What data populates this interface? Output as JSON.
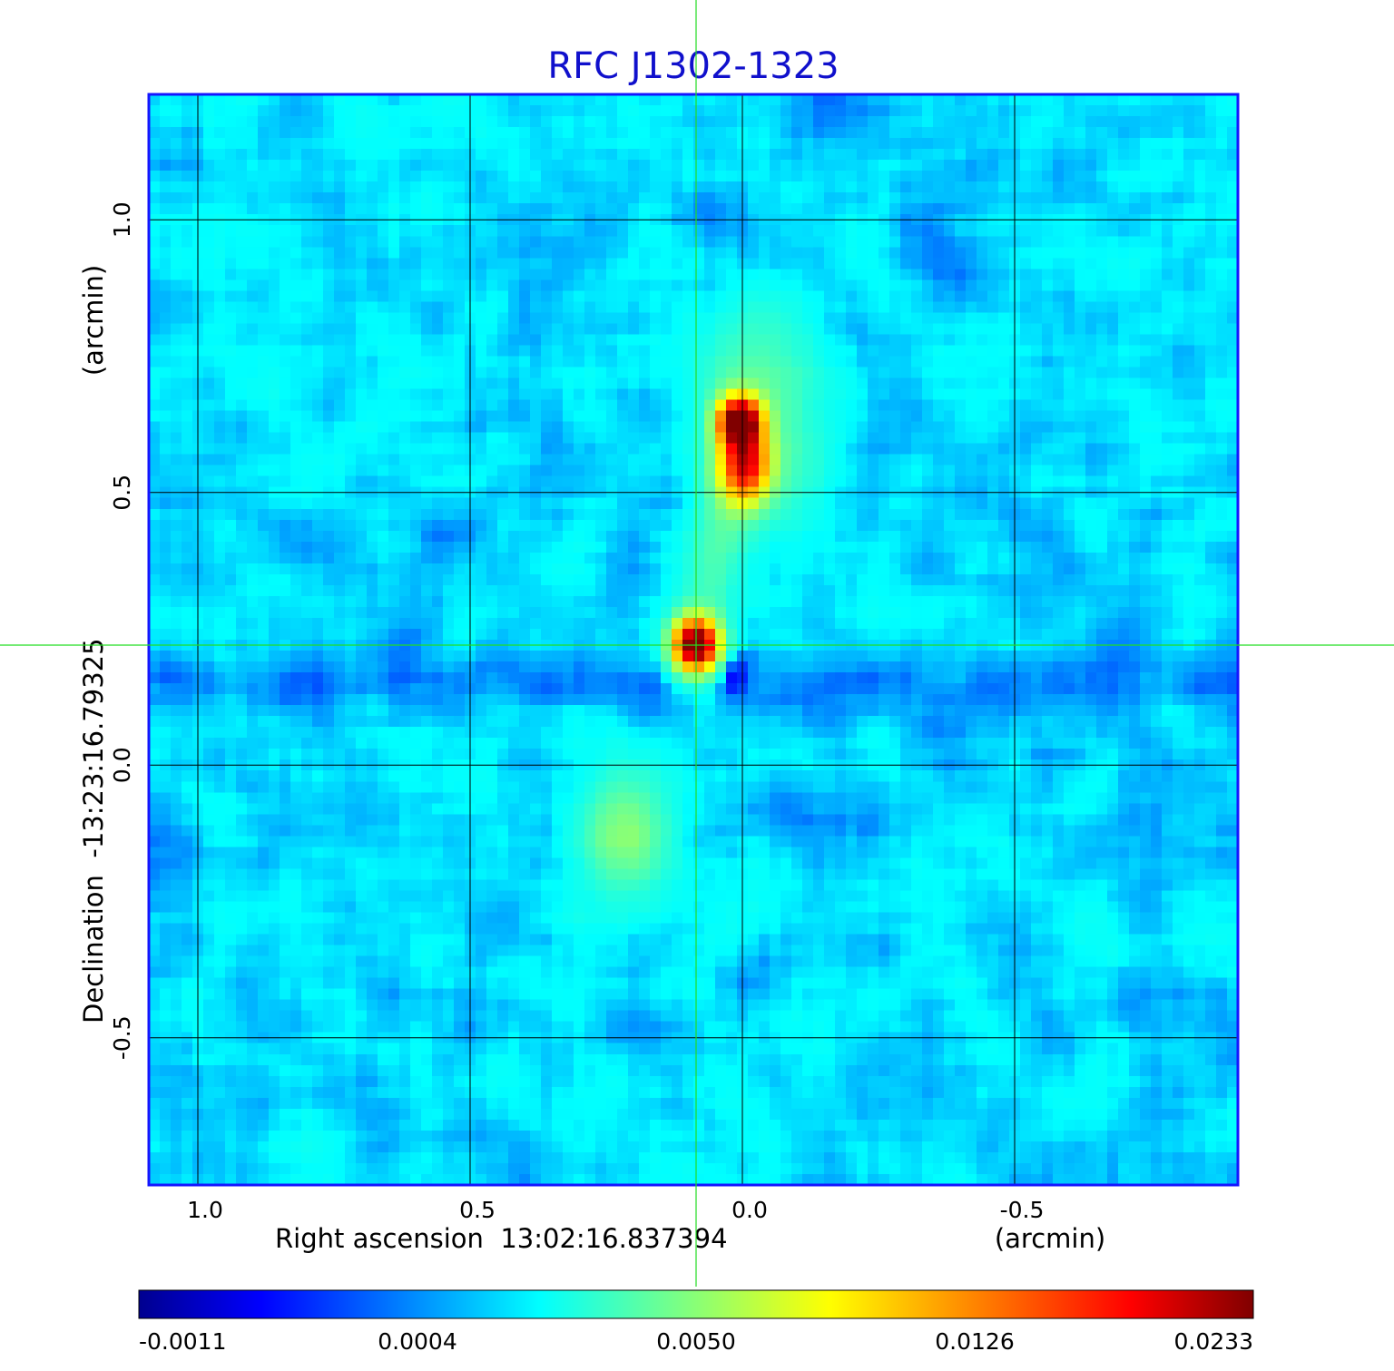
{
  "chart_data": {
    "type": "heatmap",
    "title": "RFC J1302-1323",
    "xlabel": "Right ascension  13:02:16.837394",
    "xunit": "(arcmin)",
    "ylabel": "Declination  -13:23:16.79325",
    "yunit": "(arcmin)",
    "xlim": [
      1.09,
      -0.91
    ],
    "ylim": [
      -0.77,
      1.23
    ],
    "x_ticks": [
      {
        "value": 1.0,
        "label": "1.0"
      },
      {
        "value": 0.5,
        "label": "0.5"
      },
      {
        "value": 0.0,
        "label": "0.0"
      },
      {
        "value": -0.5,
        "label": "-0.5"
      }
    ],
    "y_ticks": [
      {
        "value": 1.0,
        "label": "1.0"
      },
      {
        "value": 0.5,
        "label": "0.5"
      },
      {
        "value": 0.0,
        "label": "0.0"
      },
      {
        "value": -0.5,
        "label": "-0.5"
      }
    ],
    "grid": true,
    "crosshair": {
      "x": 0.085,
      "y": 0.22,
      "color": "#22dd22"
    },
    "colormap": "jet",
    "colorbar": {
      "position": "bottom",
      "tick_labels": [
        "-0.0011",
        "0.0004",
        "0.0050",
        "0.0126",
        "0.0233"
      ],
      "min": -0.0011,
      "max": 0.0233
    },
    "features": [
      {
        "kind": "jet-knot",
        "x": 0.0,
        "y": 0.6,
        "peak": 0.0233
      },
      {
        "kind": "core",
        "x": 0.085,
        "y": 0.22,
        "peak": 0.0233
      },
      {
        "kind": "diffuse-lobe",
        "x": 0.21,
        "y": -0.13,
        "peak": 0.005
      },
      {
        "kind": "negative-spot",
        "x": 0.02,
        "y": 0.17,
        "peak": -0.0011
      }
    ],
    "colors": {
      "title": "#1010cc",
      "frame": "#1515ff",
      "grid": "#000000",
      "crosshair": "#22dd22"
    }
  }
}
